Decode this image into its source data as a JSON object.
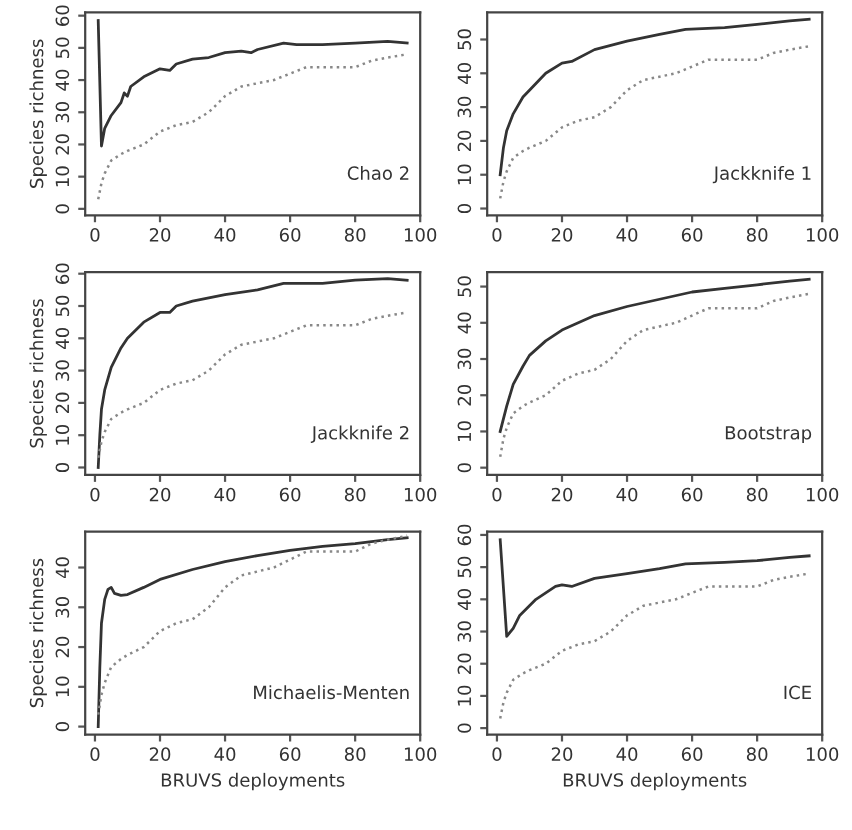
{
  "chart_data": [
    {
      "type": "line",
      "ylabel": "Species richness",
      "annotations": [
        "Chao 2"
      ],
      "xlim": [
        -3,
        100
      ],
      "xticks": [
        0,
        20,
        40,
        60,
        80,
        100
      ],
      "ylim": [
        -2,
        61
      ],
      "yticks": [
        0,
        10,
        20,
        30,
        40,
        50,
        60
      ],
      "grid": false,
      "legend": false,
      "tick_labels": "xy",
      "series": [
        {
          "color": "#333333",
          "line_style": "solid",
          "x": [
            1,
            2,
            3,
            5,
            8,
            9,
            10,
            11,
            15,
            20,
            23,
            25,
            30,
            35,
            40,
            45,
            48,
            50,
            58,
            62,
            70,
            80,
            90,
            96
          ],
          "values": [
            58.5,
            19.5,
            25,
            29,
            33,
            36,
            35,
            38,
            41,
            43.5,
            43,
            45,
            46.5,
            47,
            48.5,
            49,
            48.5,
            49.5,
            51.5,
            51,
            51,
            51.5,
            52,
            51.5
          ]
        },
        {
          "color": "#888888",
          "line_style": "dotted",
          "x": [
            1,
            2,
            3,
            5,
            8,
            10,
            15,
            20,
            25,
            30,
            35,
            40,
            45,
            50,
            55,
            60,
            65,
            70,
            75,
            80,
            85,
            90,
            96
          ],
          "values": [
            3,
            8,
            11,
            15,
            17,
            18,
            20,
            24,
            26,
            27,
            30,
            35,
            38,
            39,
            40,
            42,
            44,
            44,
            44,
            44,
            46,
            47,
            48
          ]
        }
      ]
    },
    {
      "type": "line",
      "annotations": [
        "Jackknife 1"
      ],
      "xlim": [
        -3,
        100
      ],
      "xticks": [
        0,
        20,
        40,
        60,
        80,
        100
      ],
      "ylim": [
        -2,
        58
      ],
      "yticks": [
        0,
        10,
        20,
        30,
        40,
        50
      ],
      "grid": false,
      "legend": false,
      "series": [
        {
          "color": "#333333",
          "line_style": "solid",
          "x": [
            1,
            2,
            3,
            5,
            8,
            10,
            15,
            20,
            23,
            30,
            40,
            50,
            58,
            70,
            80,
            90,
            96
          ],
          "values": [
            10,
            18,
            23,
            28,
            33,
            35,
            40,
            43,
            43.5,
            47,
            49.5,
            51.5,
            53,
            53.5,
            54.5,
            55.5,
            56
          ]
        },
        {
          "color": "#888888",
          "line_style": "dotted",
          "x": [
            1,
            2,
            3,
            5,
            8,
            10,
            15,
            20,
            25,
            30,
            35,
            40,
            45,
            50,
            55,
            60,
            65,
            70,
            75,
            80,
            85,
            90,
            96
          ],
          "values": [
            3,
            8,
            11,
            15,
            17,
            18,
            20,
            24,
            26,
            27,
            30,
            35,
            38,
            39,
            40,
            42,
            44,
            44,
            44,
            44,
            46,
            47,
            48
          ]
        }
      ]
    },
    {
      "type": "line",
      "ylabel": "Species richness",
      "annotations": [
        "Jackknife 2"
      ],
      "xlim": [
        -3,
        100
      ],
      "xticks": [
        0,
        20,
        40,
        60,
        80,
        100
      ],
      "ylim": [
        -2.3,
        60.5
      ],
      "yticks": [
        0,
        10,
        20,
        30,
        40,
        50,
        60
      ],
      "grid": false,
      "legend": false,
      "series": [
        {
          "color": "#333333",
          "line_style": "solid",
          "x": [
            1,
            1.5,
            2,
            3,
            5,
            8,
            10,
            15,
            20,
            23,
            25,
            30,
            40,
            50,
            58,
            70,
            80,
            90,
            96
          ],
          "values": [
            0,
            10,
            18,
            24,
            31,
            37,
            40,
            45,
            48,
            48,
            50,
            51.5,
            53.5,
            55,
            57,
            57,
            58,
            58.5,
            58
          ]
        },
        {
          "color": "#888888",
          "line_style": "dotted",
          "x": [
            1,
            2,
            3,
            5,
            8,
            10,
            15,
            20,
            25,
            30,
            35,
            40,
            45,
            50,
            55,
            60,
            65,
            70,
            75,
            80,
            85,
            90,
            96
          ],
          "values": [
            3,
            8,
            11,
            15,
            17,
            18,
            20,
            24,
            26,
            27,
            30,
            35,
            38,
            39,
            40,
            42,
            44,
            44,
            44,
            44,
            46,
            47,
            48
          ]
        }
      ]
    },
    {
      "type": "line",
      "annotations": [
        "Bootstrap"
      ],
      "xlim": [
        -3,
        100
      ],
      "xticks": [
        0,
        20,
        40,
        60,
        80,
        100
      ],
      "ylim": [
        -2,
        54
      ],
      "yticks": [
        0,
        10,
        20,
        30,
        40,
        50
      ],
      "grid": false,
      "legend": false,
      "series": [
        {
          "color": "#333333",
          "line_style": "solid",
          "x": [
            1,
            3,
            5,
            8,
            10,
            15,
            20,
            30,
            40,
            50,
            60,
            70,
            80,
            90,
            96
          ],
          "values": [
            10,
            17,
            23,
            28,
            31,
            35,
            38,
            42,
            44.5,
            46.5,
            48.5,
            49.5,
            50.5,
            51.5,
            52
          ]
        },
        {
          "color": "#888888",
          "line_style": "dotted",
          "x": [
            1,
            2,
            3,
            5,
            8,
            10,
            15,
            20,
            25,
            30,
            35,
            40,
            45,
            50,
            55,
            60,
            65,
            70,
            75,
            80,
            85,
            90,
            96
          ],
          "values": [
            3,
            8,
            11,
            15,
            17,
            18,
            20,
            24,
            26,
            27,
            30,
            35,
            38,
            39,
            40,
            42,
            44,
            44,
            44,
            44,
            46,
            47,
            48
          ]
        }
      ]
    },
    {
      "type": "line",
      "ylabel": "Species richness",
      "xlabel": "BRUVS deployments",
      "annotations": [
        "Michaelis-Menten"
      ],
      "xlim": [
        -3,
        100
      ],
      "xticks": [
        0,
        20,
        40,
        60,
        80,
        100
      ],
      "ylim": [
        -2,
        49
      ],
      "yticks": [
        0,
        10,
        20,
        30,
        40
      ],
      "grid": false,
      "legend": false,
      "series": [
        {
          "color": "#333333",
          "line_style": "solid",
          "x": [
            1,
            1.5,
            2,
            3,
            4,
            5,
            6,
            8,
            10,
            15,
            20,
            30,
            40,
            50,
            60,
            70,
            80,
            90,
            96
          ],
          "values": [
            0,
            15,
            26,
            32,
            34.5,
            35,
            33.5,
            33,
            33.2,
            35,
            37,
            39.5,
            41.5,
            43,
            44.3,
            45.3,
            46,
            47,
            47.5
          ]
        },
        {
          "color": "#888888",
          "line_style": "dotted",
          "x": [
            1,
            2,
            3,
            5,
            8,
            10,
            15,
            20,
            25,
            30,
            35,
            40,
            45,
            50,
            55,
            60,
            65,
            70,
            75,
            80,
            85,
            90,
            96
          ],
          "values": [
            3,
            8,
            11,
            15,
            17,
            18,
            20,
            24,
            26,
            27,
            30,
            35,
            38,
            39,
            40,
            42,
            44,
            44,
            44,
            44,
            46,
            47,
            48
          ]
        }
      ]
    },
    {
      "type": "line",
      "xlabel": "BRUVS deployments",
      "annotations": [
        "ICE"
      ],
      "xlim": [
        -3,
        100
      ],
      "xticks": [
        0,
        20,
        40,
        60,
        80,
        100
      ],
      "ylim": [
        -2,
        61
      ],
      "yticks": [
        0,
        10,
        20,
        30,
        40,
        50,
        60
      ],
      "grid": false,
      "legend": false,
      "series": [
        {
          "color": "#333333",
          "line_style": "solid",
          "x": [
            1,
            3,
            5,
            7,
            10,
            12,
            15,
            18,
            20,
            23,
            30,
            40,
            50,
            58,
            70,
            80,
            90,
            96
          ],
          "values": [
            58.5,
            28.5,
            31,
            35,
            38,
            40,
            42,
            44,
            44.5,
            44,
            46.5,
            48,
            49.5,
            51,
            51.5,
            52,
            53,
            53.5
          ]
        },
        {
          "color": "#888888",
          "line_style": "dotted",
          "x": [
            1,
            2,
            3,
            5,
            8,
            10,
            15,
            20,
            25,
            30,
            35,
            40,
            45,
            50,
            55,
            60,
            65,
            70,
            75,
            80,
            85,
            90,
            96
          ],
          "values": [
            3,
            8,
            11,
            15,
            17,
            18,
            20,
            24,
            26,
            27,
            30,
            35,
            38,
            39,
            40,
            42,
            44,
            44,
            44,
            44,
            46,
            47,
            48
          ]
        }
      ]
    }
  ]
}
